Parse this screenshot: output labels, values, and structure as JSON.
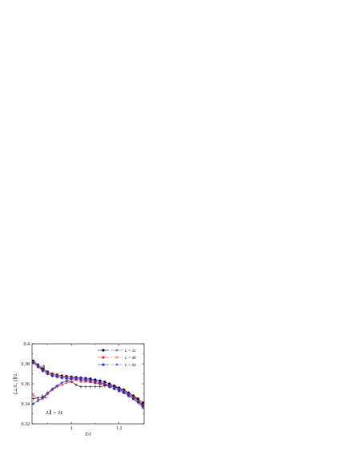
{
  "chart_data": {
    "type": "line",
    "xlabel": "T/J",
    "ylabel": "ξ⊥/L, ξ∥/L",
    "xlim": [
      0.835,
      1.305
    ],
    "ylim": [
      0.32,
      0.4
    ],
    "xticks": [
      1.0,
      1.2
    ],
    "xtick_labels": [
      "1",
      "1.2"
    ],
    "yticks": [
      0.32,
      0.34,
      0.36,
      0.38,
      0.4
    ],
    "ytick_labels": [
      "0.32",
      "0.34",
      "0.36",
      "0.38",
      "0.4"
    ],
    "legend_position": "top-right",
    "legend": [
      {
        "label": "L = 32",
        "color": "#000000"
      },
      {
        "label": "L = 48",
        "color": "#e8202a"
      },
      {
        "label": "L = 64",
        "color": "#1c2de0"
      }
    ],
    "annotations": [
      {
        "text": "ξ∥",
        "x": 0.872,
        "y": 0.3745
      },
      {
        "text": "ξ⊥",
        "x": 0.872,
        "y": 0.3455
      },
      {
        "text": "L∥ = 2L",
        "x": 0.895,
        "y": 0.3295
      }
    ],
    "series": [
      {
        "name": "L = 32",
        "quantity": "ξ∥",
        "color": "#000000",
        "marker": "filled-circle",
        "x": [
          0.84,
          0.86,
          0.88,
          0.9,
          0.92,
          0.94,
          0.96,
          0.98,
          1.0,
          1.02,
          1.04,
          1.06,
          1.08,
          1.1,
          1.12,
          1.14,
          1.16,
          1.18,
          1.2,
          1.22,
          1.24,
          1.26,
          1.28,
          1.3
        ],
        "y": [
          0.383,
          0.379,
          0.375,
          0.372,
          0.37,
          0.369,
          0.368,
          0.3675,
          0.367,
          0.3665,
          0.366,
          0.3655,
          0.365,
          0.364,
          0.363,
          0.362,
          0.36,
          0.358,
          0.356,
          0.354,
          0.351,
          0.348,
          0.345,
          0.341
        ]
      },
      {
        "name": "L = 48",
        "quantity": "ξ∥",
        "color": "#e8202a",
        "marker": "filled-circle",
        "x": [
          0.84,
          0.86,
          0.88,
          0.9,
          0.92,
          0.94,
          0.96,
          0.98,
          1.0,
          1.02,
          1.04,
          1.06,
          1.08,
          1.1,
          1.12,
          1.14,
          1.16,
          1.18,
          1.2,
          1.22,
          1.24,
          1.26,
          1.28,
          1.3
        ],
        "y": [
          0.382,
          0.378,
          0.374,
          0.371,
          0.369,
          0.368,
          0.367,
          0.3665,
          0.366,
          0.3655,
          0.365,
          0.364,
          0.363,
          0.362,
          0.361,
          0.36,
          0.358,
          0.356,
          0.354,
          0.352,
          0.349,
          0.346,
          0.343,
          0.339
        ]
      },
      {
        "name": "L = 64",
        "quantity": "ξ∥",
        "color": "#1c2de0",
        "marker": "filled-circle",
        "x": [
          0.84,
          0.86,
          0.88,
          0.9,
          0.92,
          0.94,
          0.96,
          0.98,
          1.0,
          1.02,
          1.04,
          1.06,
          1.08,
          1.1,
          1.12,
          1.14,
          1.16,
          1.18,
          1.2,
          1.22,
          1.24,
          1.26,
          1.28,
          1.3
        ],
        "y": [
          0.381,
          0.377,
          0.373,
          0.37,
          0.368,
          0.367,
          0.366,
          0.3655,
          0.365,
          0.3645,
          0.364,
          0.363,
          0.362,
          0.361,
          0.36,
          0.359,
          0.357,
          0.355,
          0.353,
          0.351,
          0.348,
          0.345,
          0.342,
          0.338
        ]
      },
      {
        "name": "L = 32",
        "quantity": "ξ⊥",
        "color": "#000000",
        "marker": "plus",
        "x": [
          0.84,
          0.86,
          0.88,
          0.9,
          0.92,
          0.94,
          0.96,
          0.98,
          1.0,
          1.02,
          1.04,
          1.06,
          1.08,
          1.1,
          1.12,
          1.14,
          1.16,
          1.18,
          1.2,
          1.22,
          1.24,
          1.26,
          1.28,
          1.3
        ],
        "y": [
          0.345,
          0.346,
          0.347,
          0.35,
          0.354,
          0.358,
          0.361,
          0.363,
          0.362,
          0.359,
          0.357,
          0.357,
          0.357,
          0.357,
          0.357,
          0.358,
          0.358,
          0.357,
          0.356,
          0.354,
          0.351,
          0.348,
          0.344,
          0.338
        ]
      },
      {
        "name": "L = 48",
        "quantity": "ξ⊥",
        "color": "#e8202a",
        "marker": "cross",
        "x": [
          0.84,
          0.86,
          0.88,
          0.9,
          0.92,
          0.94,
          0.96,
          0.98,
          1.0,
          1.02,
          1.04,
          1.06,
          1.08,
          1.1,
          1.12,
          1.14,
          1.16,
          1.18,
          1.2,
          1.22,
          1.24,
          1.26,
          1.28,
          1.3
        ],
        "y": [
          0.349,
          0.344,
          0.345,
          0.35,
          0.354,
          0.357,
          0.359,
          0.361,
          0.362,
          0.364,
          0.362,
          0.362,
          0.362,
          0.361,
          0.36,
          0.359,
          0.358,
          0.357,
          0.355,
          0.353,
          0.35,
          0.347,
          0.343,
          0.337
        ]
      },
      {
        "name": "L = 64",
        "quantity": "ξ⊥",
        "color": "#1c2de0",
        "marker": "asterisk",
        "x": [
          0.84,
          0.86,
          0.88,
          0.9,
          0.92,
          0.94,
          0.96,
          0.98,
          1.0,
          1.02,
          1.04,
          1.06,
          1.08,
          1.1,
          1.12,
          1.14,
          1.16,
          1.18,
          1.2,
          1.22,
          1.24,
          1.26,
          1.28,
          1.3
        ],
        "y": [
          0.34,
          0.343,
          0.346,
          0.351,
          0.355,
          0.358,
          0.361,
          0.363,
          0.365,
          0.366,
          0.366,
          0.365,
          0.364,
          0.363,
          0.362,
          0.36,
          0.359,
          0.357,
          0.355,
          0.352,
          0.349,
          0.345,
          0.341,
          0.336
        ]
      }
    ]
  }
}
